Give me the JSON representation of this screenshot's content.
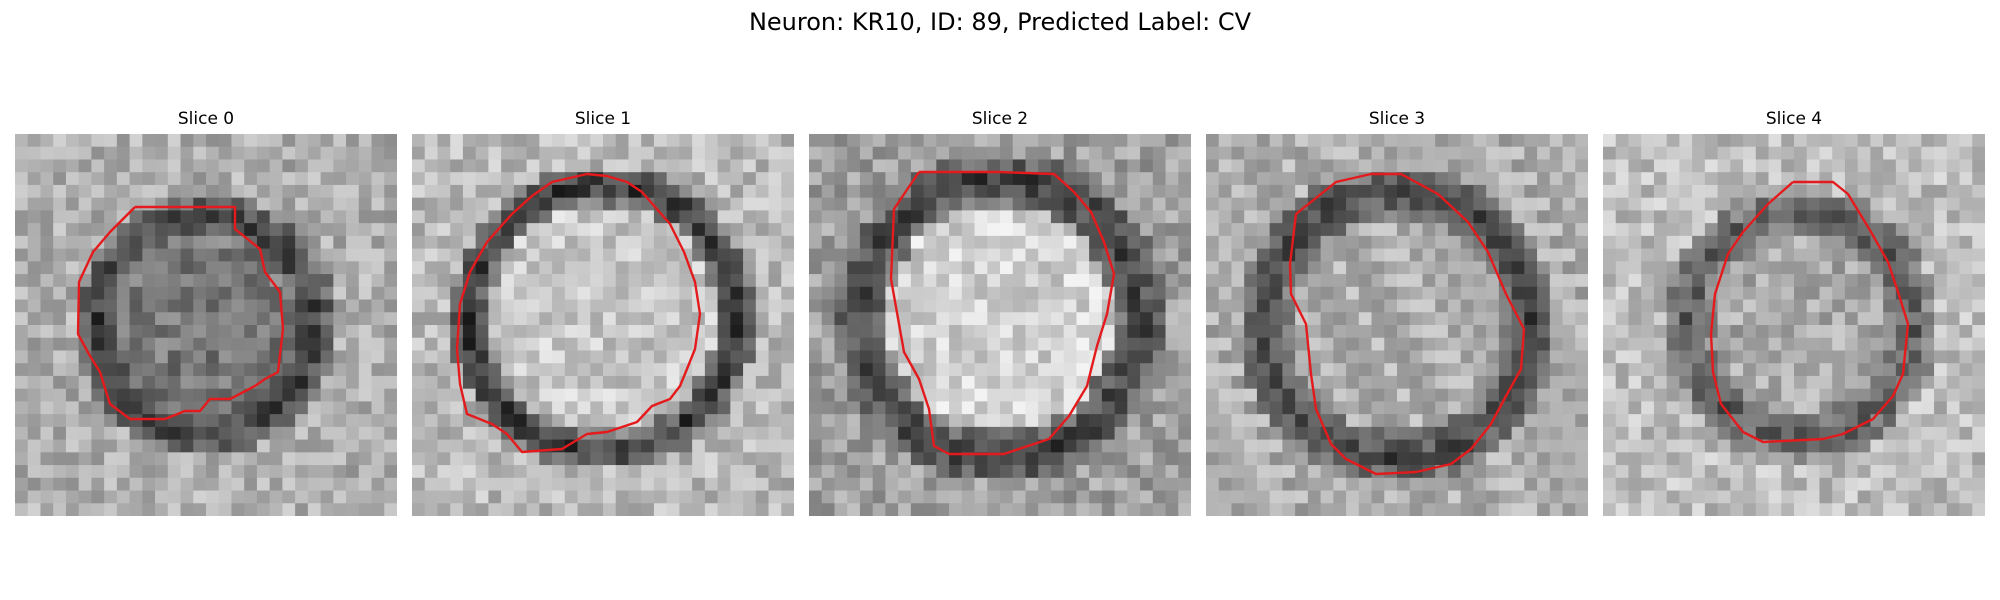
{
  "figure": {
    "title": "Neuron: KR10, ID: 89, Predicted Label: CV"
  },
  "slices": [
    {
      "title": "Slice 0",
      "contour_color": "#e41a1c"
    },
    {
      "title": "Slice 1",
      "contour_color": "#e41a1c"
    },
    {
      "title": "Slice 2",
      "contour_color": "#e41a1c"
    },
    {
      "title": "Slice 3",
      "contour_color": "#e41a1c"
    },
    {
      "title": "Slice 4",
      "contour_color": "#e41a1c"
    }
  ]
}
